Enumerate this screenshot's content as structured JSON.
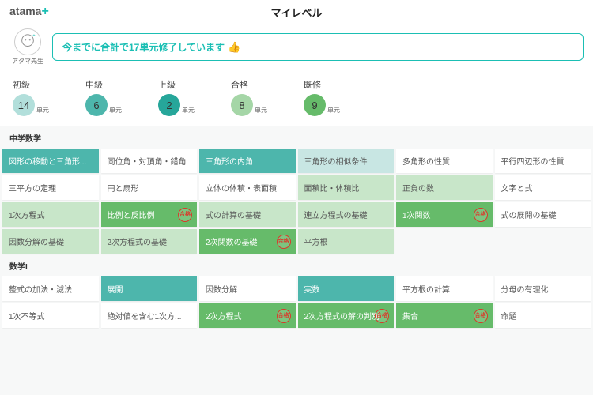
{
  "header": {
    "logo_text": "atama",
    "page_title": "マイレベル"
  },
  "teacher": {
    "label": "アタマ先生",
    "speech": "今までに合計で17単元修了しています"
  },
  "levels": [
    {
      "label": "初級",
      "count": 14,
      "unit": "単元",
      "color": "#b2dfdb"
    },
    {
      "label": "中級",
      "count": 6,
      "unit": "単元",
      "color": "#4db6ac"
    },
    {
      "label": "上級",
      "count": 2,
      "unit": "単元",
      "color": "#26a69a"
    },
    {
      "label": "合格",
      "count": 8,
      "unit": "単元",
      "color": "#a5d6a7"
    },
    {
      "label": "既修",
      "count": 9,
      "unit": "単元",
      "color": "#66bb6a"
    }
  ],
  "sections": [
    {
      "title": "中学数学",
      "rows": [
        [
          {
            "label": "図形の移動と三角形...",
            "style": "teal"
          },
          {
            "label": "同位角・対頂角・錯角",
            "style": "white"
          },
          {
            "label": "三角形の内角",
            "style": "teal"
          },
          {
            "label": "三角形の相似条件",
            "style": "ltteal"
          },
          {
            "label": "多角形の性質",
            "style": "white"
          },
          {
            "label": "平行四辺形の性質",
            "style": "white"
          }
        ],
        [
          {
            "label": "三平方の定理",
            "style": "white"
          },
          {
            "label": "円と扇形",
            "style": "white"
          },
          {
            "label": "立体の体積・表面積",
            "style": "white"
          },
          {
            "label": "面積比・体積比",
            "style": "ltgrn"
          },
          {
            "label": "正負の数",
            "style": "ltgrn"
          },
          {
            "label": "文字と式",
            "style": "white"
          }
        ],
        [
          {
            "label": "1次方程式",
            "style": "ltgrn"
          },
          {
            "label": "比例と反比例",
            "style": "green",
            "stamp": true
          },
          {
            "label": "式の計算の基礎",
            "style": "ltgrn"
          },
          {
            "label": "連立方程式の基礎",
            "style": "ltgrn"
          },
          {
            "label": "1次関数",
            "style": "green",
            "stamp": true
          },
          {
            "label": "式の展開の基礎",
            "style": "white"
          }
        ],
        [
          {
            "label": "因数分解の基礎",
            "style": "ltgrn"
          },
          {
            "label": "2次方程式の基礎",
            "style": "ltgrn"
          },
          {
            "label": "2次関数の基礎",
            "style": "green",
            "stamp": true
          },
          {
            "label": "平方根",
            "style": "ltgrn"
          },
          {
            "label": "",
            "style": "none"
          },
          {
            "label": "",
            "style": "none"
          }
        ]
      ]
    },
    {
      "title": "数学I",
      "rows": [
        [
          {
            "label": "整式の加法・減法",
            "style": "white"
          },
          {
            "label": "展開",
            "style": "teal"
          },
          {
            "label": "因数分解",
            "style": "white"
          },
          {
            "label": "実数",
            "style": "teal"
          },
          {
            "label": "平方根の計算",
            "style": "white"
          },
          {
            "label": "分母の有理化",
            "style": "white"
          }
        ],
        [
          {
            "label": "1次不等式",
            "style": "white"
          },
          {
            "label": "絶対値を含む1次方...",
            "style": "white"
          },
          {
            "label": "2次方程式",
            "style": "green",
            "stamp": true
          },
          {
            "label": "2次方程式の解の判別",
            "style": "green",
            "stamp": true
          },
          {
            "label": "集合",
            "style": "green",
            "stamp": true
          },
          {
            "label": "命題",
            "style": "white"
          }
        ]
      ]
    }
  ],
  "stamp_text": "合格"
}
